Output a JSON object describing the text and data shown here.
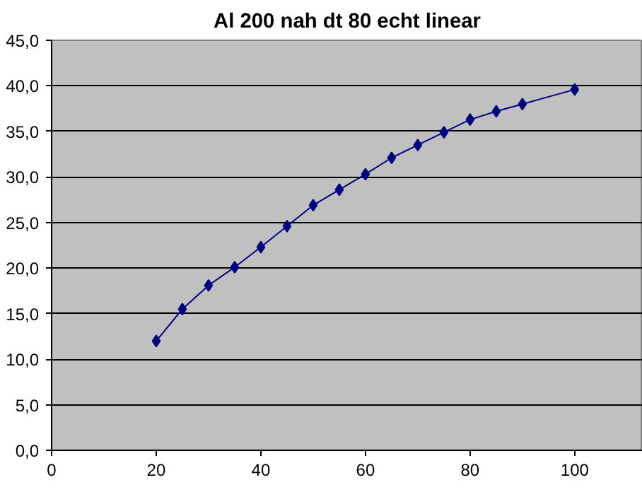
{
  "chart_data": {
    "type": "line",
    "title": "Al 200 nah dt 80 echt linear",
    "x": [
      20,
      25,
      30,
      35,
      40,
      45,
      50,
      55,
      60,
      65,
      70,
      75,
      80,
      85,
      90,
      100
    ],
    "series": [
      {
        "color": "#000080",
        "values": [
          12.0,
          15.5,
          18.1,
          20.1,
          22.3,
          24.6,
          26.9,
          28.6,
          30.3,
          32.1,
          33.5,
          34.9,
          36.3,
          37.2,
          38.0,
          39.6
        ]
      }
    ],
    "xlim": [
      0,
      113
    ],
    "xticks": [
      0,
      20,
      40,
      60,
      80,
      100
    ],
    "ylim": [
      0,
      45
    ],
    "yticks": [
      {
        "value": 0,
        "label": "0,0"
      },
      {
        "value": 5,
        "label": "5,0"
      },
      {
        "value": 10,
        "label": "10,0"
      },
      {
        "value": 15,
        "label": "15,0"
      },
      {
        "value": 20,
        "label": "20,0"
      },
      {
        "value": 25,
        "label": "25,0"
      },
      {
        "value": 30,
        "label": "30,0"
      },
      {
        "value": 35,
        "label": "35,0"
      },
      {
        "value": 40,
        "label": "40,0"
      },
      {
        "value": 45,
        "label": "45,0"
      }
    ],
    "grid": "y",
    "marker": "diamond",
    "line_style": "solid"
  }
}
